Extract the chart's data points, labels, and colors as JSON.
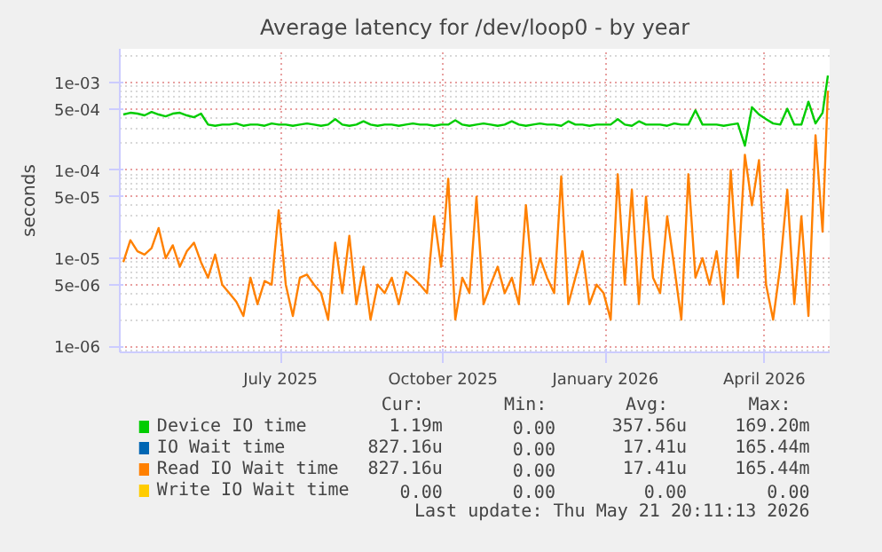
{
  "chart_data": {
    "type": "line",
    "title": "Average latency for /dev/loop0 - by year",
    "ylabel": "seconds",
    "log": true,
    "grid": true,
    "legend": "bottom",
    "line_style": "solid",
    "marker": "none",
    "xlim": [
      "2025-04-01",
      "2026-05-08"
    ],
    "xticks": [
      {
        "value": "2025-07-01",
        "label": "July 2025"
      },
      {
        "value": "2025-10-01",
        "label": "October 2025"
      },
      {
        "value": "2026-01-01",
        "label": "January 2026"
      },
      {
        "value": "2026-04-01",
        "label": "April 2026"
      }
    ],
    "ylim": [
      8.5e-07,
      0.0024
    ],
    "yticks": [
      {
        "value": 0.001,
        "label": "1e-03"
      },
      {
        "value": 0.0005,
        "label": "5e-04"
      },
      {
        "value": 0.0001,
        "label": "1e-04"
      },
      {
        "value": 5e-05,
        "label": "5e-05"
      },
      {
        "value": 1e-05,
        "label": "1e-05"
      },
      {
        "value": 5e-06,
        "label": "5e-06"
      },
      {
        "value": 1e-06,
        "label": "1e-06"
      }
    ],
    "x": [
      "2025-04-03",
      "2025-04-07",
      "2025-04-11",
      "2025-04-15",
      "2025-04-19",
      "2025-04-23",
      "2025-04-27",
      "2025-05-01",
      "2025-05-05",
      "2025-05-09",
      "2025-05-13",
      "2025-05-17",
      "2025-05-21",
      "2025-05-25",
      "2025-05-29",
      "2025-06-02",
      "2025-06-06",
      "2025-06-10",
      "2025-06-14",
      "2025-06-18",
      "2025-06-22",
      "2025-06-26",
      "2025-06-30",
      "2025-07-04",
      "2025-07-08",
      "2025-07-12",
      "2025-07-16",
      "2025-07-20",
      "2025-07-24",
      "2025-07-28",
      "2025-08-01",
      "2025-08-05",
      "2025-08-09",
      "2025-08-13",
      "2025-08-17",
      "2025-08-21",
      "2025-08-25",
      "2025-08-29",
      "2025-09-02",
      "2025-09-06",
      "2025-09-10",
      "2025-09-14",
      "2025-09-18",
      "2025-09-22",
      "2025-09-26",
      "2025-09-30",
      "2025-10-04",
      "2025-10-08",
      "2025-10-12",
      "2025-10-16",
      "2025-10-20",
      "2025-10-24",
      "2025-10-28",
      "2025-11-01",
      "2025-11-05",
      "2025-11-09",
      "2025-11-13",
      "2025-11-17",
      "2025-11-21",
      "2025-11-25",
      "2025-11-29",
      "2025-12-03",
      "2025-12-07",
      "2025-12-11",
      "2025-12-15",
      "2025-12-19",
      "2025-12-23",
      "2025-12-27",
      "2025-12-31",
      "2026-01-04",
      "2026-01-08",
      "2026-01-12",
      "2026-01-16",
      "2026-01-20",
      "2026-01-24",
      "2026-01-28",
      "2026-02-01",
      "2026-02-05",
      "2026-02-09",
      "2026-02-13",
      "2026-02-17",
      "2026-02-21",
      "2026-02-25",
      "2026-03-01",
      "2026-03-05",
      "2026-03-09",
      "2026-03-13",
      "2026-03-17",
      "2026-03-21",
      "2026-03-25",
      "2026-03-29",
      "2026-04-02",
      "2026-04-06",
      "2026-04-10",
      "2026-04-14",
      "2026-04-18",
      "2026-04-22",
      "2026-04-26",
      "2026-04-30",
      "2026-05-04",
      "2026-05-07"
    ],
    "series": [
      {
        "name": "Device IO time",
        "color": "#00cc00",
        "values": [
          0.00043,
          0.00045,
          0.00044,
          0.00042,
          0.00046,
          0.00043,
          0.00041,
          0.00044,
          0.00045,
          0.00042,
          0.0004,
          0.00044,
          0.00033,
          0.00032,
          0.00033,
          0.00033,
          0.00034,
          0.00032,
          0.00033,
          0.00033,
          0.00032,
          0.00034,
          0.00033,
          0.00033,
          0.00032,
          0.00033,
          0.00034,
          0.00033,
          0.00032,
          0.00033,
          0.00038,
          0.00033,
          0.00032,
          0.00033,
          0.00036,
          0.00033,
          0.00032,
          0.00033,
          0.00033,
          0.00032,
          0.00033,
          0.00034,
          0.00033,
          0.00033,
          0.00032,
          0.00033,
          0.00033,
          0.00037,
          0.00033,
          0.00032,
          0.00033,
          0.00034,
          0.00033,
          0.00032,
          0.00033,
          0.00036,
          0.00033,
          0.00032,
          0.00033,
          0.00034,
          0.00033,
          0.00033,
          0.00032,
          0.00036,
          0.00033,
          0.00033,
          0.00032,
          0.00033,
          0.00033,
          0.00033,
          0.00038,
          0.00033,
          0.00032,
          0.00036,
          0.00033,
          0.00033,
          0.00033,
          0.00032,
          0.00034,
          0.00033,
          0.00033,
          0.00048,
          0.00033,
          0.00033,
          0.00033,
          0.00032,
          0.00033,
          0.00034,
          0.00019,
          0.00052,
          0.00043,
          0.00038,
          0.00034,
          0.00033,
          0.0005,
          0.00033,
          0.00033,
          0.0006,
          0.00034,
          0.00045,
          0.00119
        ]
      },
      {
        "name": "IO Wait time",
        "color": "#0066b3",
        "values": [
          null,
          null,
          null,
          null,
          null,
          null,
          null,
          null,
          null,
          null,
          null,
          null,
          null,
          null,
          null,
          null,
          null,
          null,
          null,
          null,
          null,
          null,
          null,
          null,
          null,
          null,
          null,
          null,
          null,
          null,
          null,
          null,
          null,
          null,
          null,
          null,
          null,
          null,
          null,
          null,
          null,
          null,
          null,
          null,
          null,
          null,
          null,
          null,
          null,
          null,
          null,
          null,
          null,
          null,
          null,
          null,
          null,
          null,
          null,
          null,
          null,
          null,
          null,
          null,
          null,
          null,
          null,
          null,
          null,
          null,
          null,
          null,
          null,
          null,
          null,
          null,
          null,
          null,
          null,
          null,
          null,
          null,
          null,
          null,
          null,
          null,
          null,
          null,
          null,
          null,
          null,
          null,
          null,
          null,
          null,
          null,
          null,
          null,
          null,
          null,
          null
        ]
      },
      {
        "name": "Read IO Wait time",
        "color": "#ff8000",
        "values": [
          9e-06,
          1.6e-05,
          1.2e-05,
          1.1e-05,
          1.3e-05,
          2.2e-05,
          1e-05,
          1.4e-05,
          8e-06,
          1.2e-05,
          1.5e-05,
          9e-06,
          6e-06,
          1.1e-05,
          5e-06,
          4e-06,
          3.2e-06,
          2.2e-06,
          6e-06,
          3e-06,
          5.5e-06,
          5e-06,
          3.5e-05,
          5e-06,
          2.2e-06,
          6e-06,
          6.5e-06,
          5e-06,
          4e-06,
          2e-06,
          1.5e-05,
          4e-06,
          1.8e-05,
          3e-06,
          8e-06,
          2e-06,
          5e-06,
          4e-06,
          6e-06,
          3e-06,
          7e-06,
          6e-06,
          5e-06,
          4e-06,
          3e-05,
          8e-06,
          8e-05,
          2e-06,
          6e-06,
          4e-06,
          5e-05,
          3e-06,
          5e-06,
          8e-06,
          4e-06,
          6e-06,
          3e-06,
          4e-05,
          5e-06,
          1e-05,
          6e-06,
          4e-06,
          8.5e-05,
          3e-06,
          6e-06,
          1.2e-05,
          3e-06,
          5e-06,
          4e-06,
          2e-06,
          9e-05,
          5e-06,
          6e-05,
          3e-06,
          5e-05,
          6e-06,
          4e-06,
          3e-05,
          8e-06,
          2e-06,
          9e-05,
          6e-06,
          1e-05,
          5e-06,
          1.2e-05,
          3e-06,
          0.0001,
          6e-06,
          0.00015,
          4e-05,
          0.00013,
          5e-06,
          2e-06,
          8e-06,
          6e-05,
          3e-06,
          3e-05,
          2.2e-06,
          0.00025,
          2e-05,
          0.0008
        ]
      },
      {
        "name": "Write IO Wait time",
        "color": "#ffcc00",
        "values": [
          null,
          null,
          null,
          null,
          null,
          null,
          null,
          null,
          null,
          null,
          null,
          null,
          null,
          null,
          null,
          null,
          null,
          null,
          null,
          null,
          null,
          null,
          null,
          null,
          null,
          null,
          null,
          null,
          null,
          null,
          null,
          null,
          null,
          null,
          null,
          null,
          null,
          null,
          null,
          null,
          null,
          null,
          null,
          null,
          null,
          null,
          null,
          null,
          null,
          null,
          null,
          null,
          null,
          null,
          null,
          null,
          null,
          null,
          null,
          null,
          null,
          null,
          null,
          null,
          null,
          null,
          null,
          null,
          null,
          null,
          null,
          null,
          null,
          null,
          null,
          null,
          null,
          null,
          null,
          null,
          null,
          null,
          null,
          null,
          null,
          null,
          null,
          null,
          null,
          null,
          null,
          null,
          null,
          null,
          null,
          null,
          null,
          null,
          null,
          null,
          null
        ]
      }
    ],
    "annotations": [
      "Cur:",
      "Min:",
      "Avg:",
      "Max:",
      "1.19m",
      "0.00",
      "357.56u",
      "169.20m",
      "827.16u",
      "0.00",
      "17.41u",
      "165.44m",
      "827.16u",
      "0.00",
      "17.41u",
      "165.44m",
      "0.00",
      "0.00",
      "0.00",
      "0.00",
      "Last update: Thu May 21 20:11:13 2026"
    ]
  }
}
